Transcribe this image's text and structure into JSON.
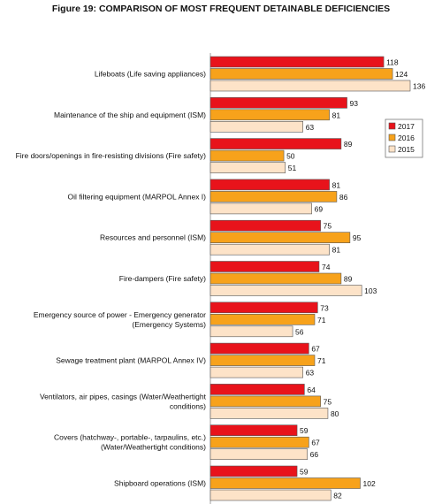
{
  "chart_data": {
    "type": "bar",
    "orientation": "horizontal",
    "title": "Figure 19: COMPARISON OF MOST FREQUENT DETAINABLE DEFICIENCIES",
    "categories": [
      [
        "Lifeboats (Life saving appliances)"
      ],
      [
        "Maintenance of the ship and equipment (ISM)"
      ],
      [
        "Fire doors/openings in fire-resisting divisions (Fire safety)"
      ],
      [
        "Oil filtering equipment (MARPOL Annex I)"
      ],
      [
        "Resources and personnel (ISM)"
      ],
      [
        "Fire-dampers (Fire safety)"
      ],
      [
        "Emergency source of power - Emergency generator",
        "(Emergency Systems)"
      ],
      [
        "Sewage treatment plant (MARPOL Annex IV)"
      ],
      [
        "Ventilators, air pipes, casings (Water/Weathertight",
        "conditions)"
      ],
      [
        "Covers (hatchway-, portable-, tarpaulins, etc.)",
        "(Water/Weathertight conditions)"
      ],
      [
        "Shipboard operations (ISM)"
      ]
    ],
    "series": [
      {
        "name": "2017",
        "color": "#e8131b",
        "values": [
          118,
          93,
          89,
          81,
          75,
          74,
          73,
          67,
          64,
          59,
          59
        ]
      },
      {
        "name": "2016",
        "color": "#f7a21b",
        "values": [
          124,
          81,
          50,
          86,
          95,
          89,
          71,
          71,
          75,
          67,
          102
        ]
      },
      {
        "name": "2015",
        "color": "#fde3c8",
        "values": [
          136,
          63,
          51,
          69,
          81,
          103,
          56,
          63,
          80,
          66,
          82
        ]
      }
    ],
    "xlim": [
      0,
      136
    ],
    "legend_position": "right",
    "grid": false
  }
}
